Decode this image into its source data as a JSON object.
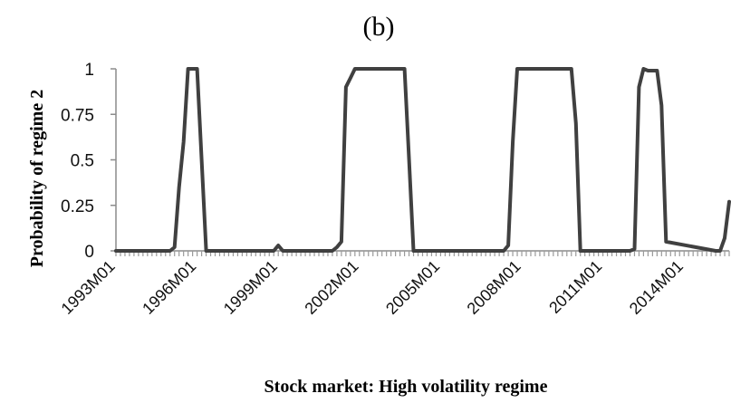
{
  "chart_data": {
    "type": "line",
    "title": "(b)",
    "xlabel": "Stock market: High volatility regime",
    "ylabel": "Probability of regime 2",
    "ylim": [
      0,
      1
    ],
    "yticks": [
      "0",
      "0.25",
      "0.5",
      "0.75",
      "1"
    ],
    "xticks": [
      "1993M01",
      "1996M01",
      "1999M01",
      "2002M01",
      "2005M01",
      "2008M01",
      "2011M01",
      "2014M01"
    ],
    "grid": false,
    "legend": "none",
    "line_color": "#404040",
    "series": [
      {
        "x": [
          "1993M01",
          "1995M01",
          "1995M03",
          "1995M05",
          "1995M07",
          "1995M09",
          "1995M11",
          "1996M01",
          "1996M03",
          "1996M05",
          "1998M11",
          "1999M01",
          "1999M03",
          "2001M01",
          "2001M03",
          "2001M05",
          "2001M07",
          "2001M09",
          "2001M11",
          "2002M01",
          "2003M09",
          "2003M11",
          "2004M01",
          "2004M03",
          "2004M05",
          "2007M05",
          "2007M07",
          "2007M09",
          "2007M11",
          "2008M01",
          "2009M11",
          "2010M01",
          "2010M03",
          "2010M05",
          "2012M01",
          "2012M03",
          "2012M05",
          "2012M07",
          "2012M09",
          "2012M11",
          "2013M01",
          "2013M03",
          "2013M05",
          "2015M03",
          "2015M05",
          "2015M07",
          "2015M09"
        ],
        "y": [
          0,
          0,
          0.02,
          0.35,
          0.6,
          1,
          1,
          1,
          0.5,
          0,
          0,
          0.03,
          0,
          0,
          0.02,
          0.05,
          0.9,
          0.95,
          1,
          1,
          1,
          0.5,
          0,
          0,
          0,
          0,
          0.03,
          0.6,
          1,
          1,
          1,
          0.7,
          0,
          0,
          0,
          0.01,
          0.9,
          1,
          0.99,
          0.99,
          0.99,
          0.8,
          0.05,
          0,
          0,
          0.07,
          0.27
        ]
      }
    ]
  }
}
